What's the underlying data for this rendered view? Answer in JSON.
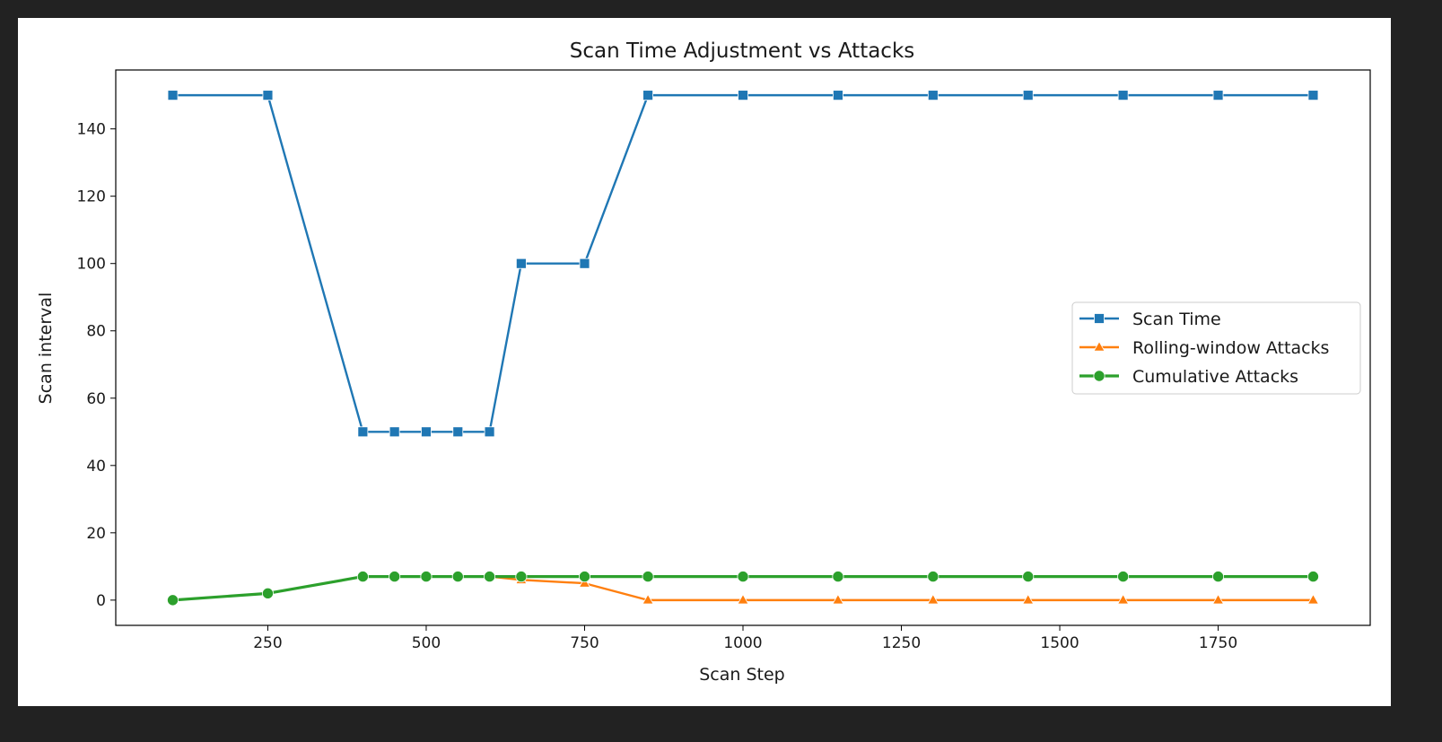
{
  "chart_data": {
    "type": "line",
    "title": "Scan Time Adjustment vs Attacks",
    "xlabel": "Scan Step",
    "ylabel": "Scan interval",
    "xlim": [
      10,
      1990
    ],
    "ylim": [
      -7.5,
      157.5
    ],
    "xticks": [
      250,
      500,
      750,
      1000,
      1250,
      1500,
      1750
    ],
    "yticks": [
      0,
      20,
      40,
      60,
      80,
      100,
      120,
      140
    ],
    "grid": false,
    "legend_position": "center-right",
    "x": [
      100,
      250,
      400,
      450,
      500,
      550,
      600,
      650,
      750,
      850,
      1000,
      1150,
      1300,
      1450,
      1600,
      1750,
      1900
    ],
    "series": [
      {
        "name": "Scan Time",
        "marker": "square",
        "color": "#1f77b4",
        "values": [
          150,
          150,
          50,
          50,
          50,
          50,
          50,
          100,
          100,
          150,
          150,
          150,
          150,
          150,
          150,
          150,
          150
        ]
      },
      {
        "name": "Rolling-window Attacks",
        "marker": "triangle",
        "color": "#ff7f0e",
        "values": [
          0,
          2,
          7,
          7,
          7,
          7,
          7,
          6,
          5,
          0,
          0,
          0,
          0,
          0,
          0,
          0,
          0
        ]
      },
      {
        "name": "Cumulative Attacks",
        "marker": "circle",
        "color": "#2ca02c",
        "values": [
          0,
          2,
          7,
          7,
          7,
          7,
          7,
          7,
          7,
          7,
          7,
          7,
          7,
          7,
          7,
          7,
          7
        ]
      }
    ]
  }
}
